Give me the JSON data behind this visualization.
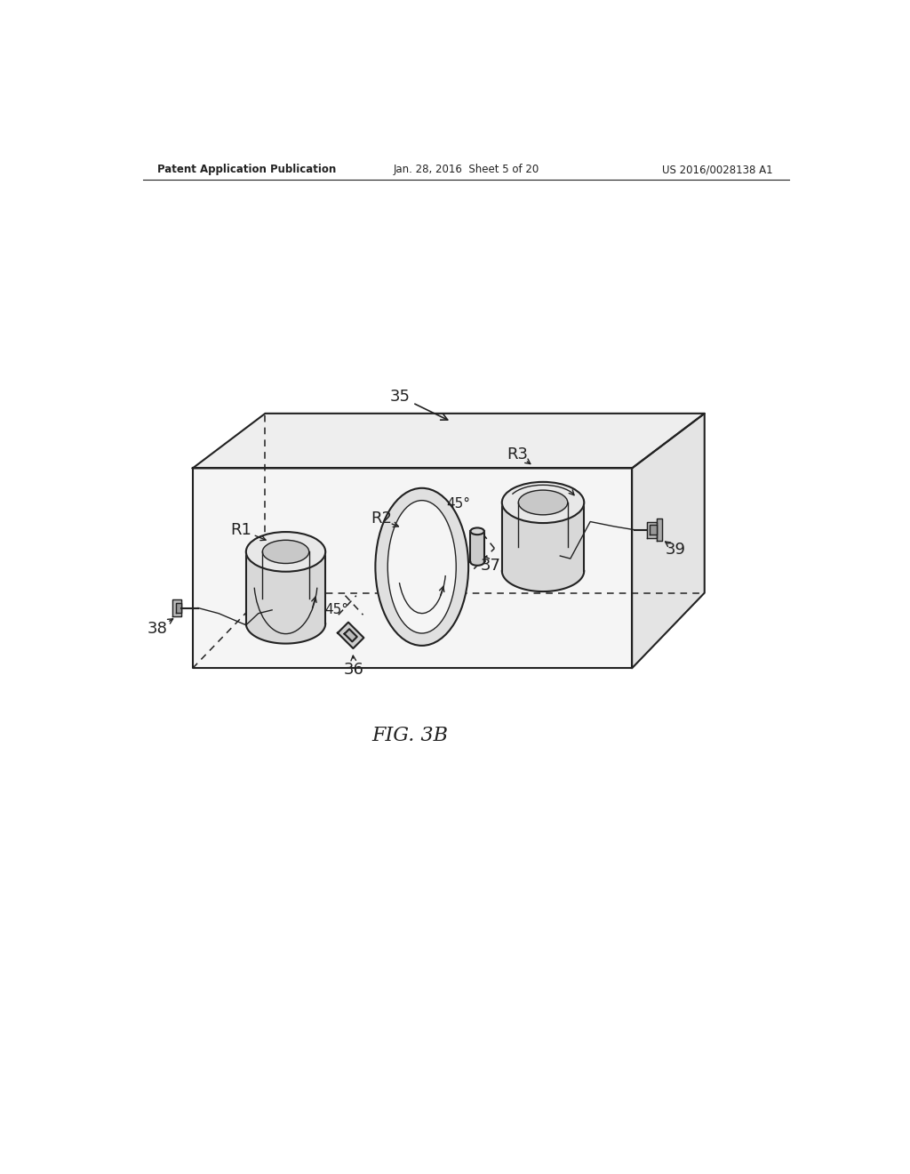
{
  "background_color": "#ffffff",
  "header_left": "Patent Application Publication",
  "header_center": "Jan. 28, 2016  Sheet 5 of 20",
  "header_right": "US 2016/0028138 A1",
  "caption": "FIG. 3B",
  "line_color": "#222222",
  "label_35": "35",
  "label_36": "36",
  "label_37": "37",
  "label_38": "38",
  "label_39": "39",
  "label_R1": "R1",
  "label_R2": "R2",
  "label_R3": "R3",
  "label_45a": "45°",
  "label_45b": "45°",
  "box_face_top": "#eeeeee",
  "box_face_right": "#e4e4e4",
  "box_face_front": "#f5f5f5",
  "cyl_top": "#e8e8e8",
  "cyl_side": "#d8d8d8",
  "cyl_inner": "#c8c8c8"
}
